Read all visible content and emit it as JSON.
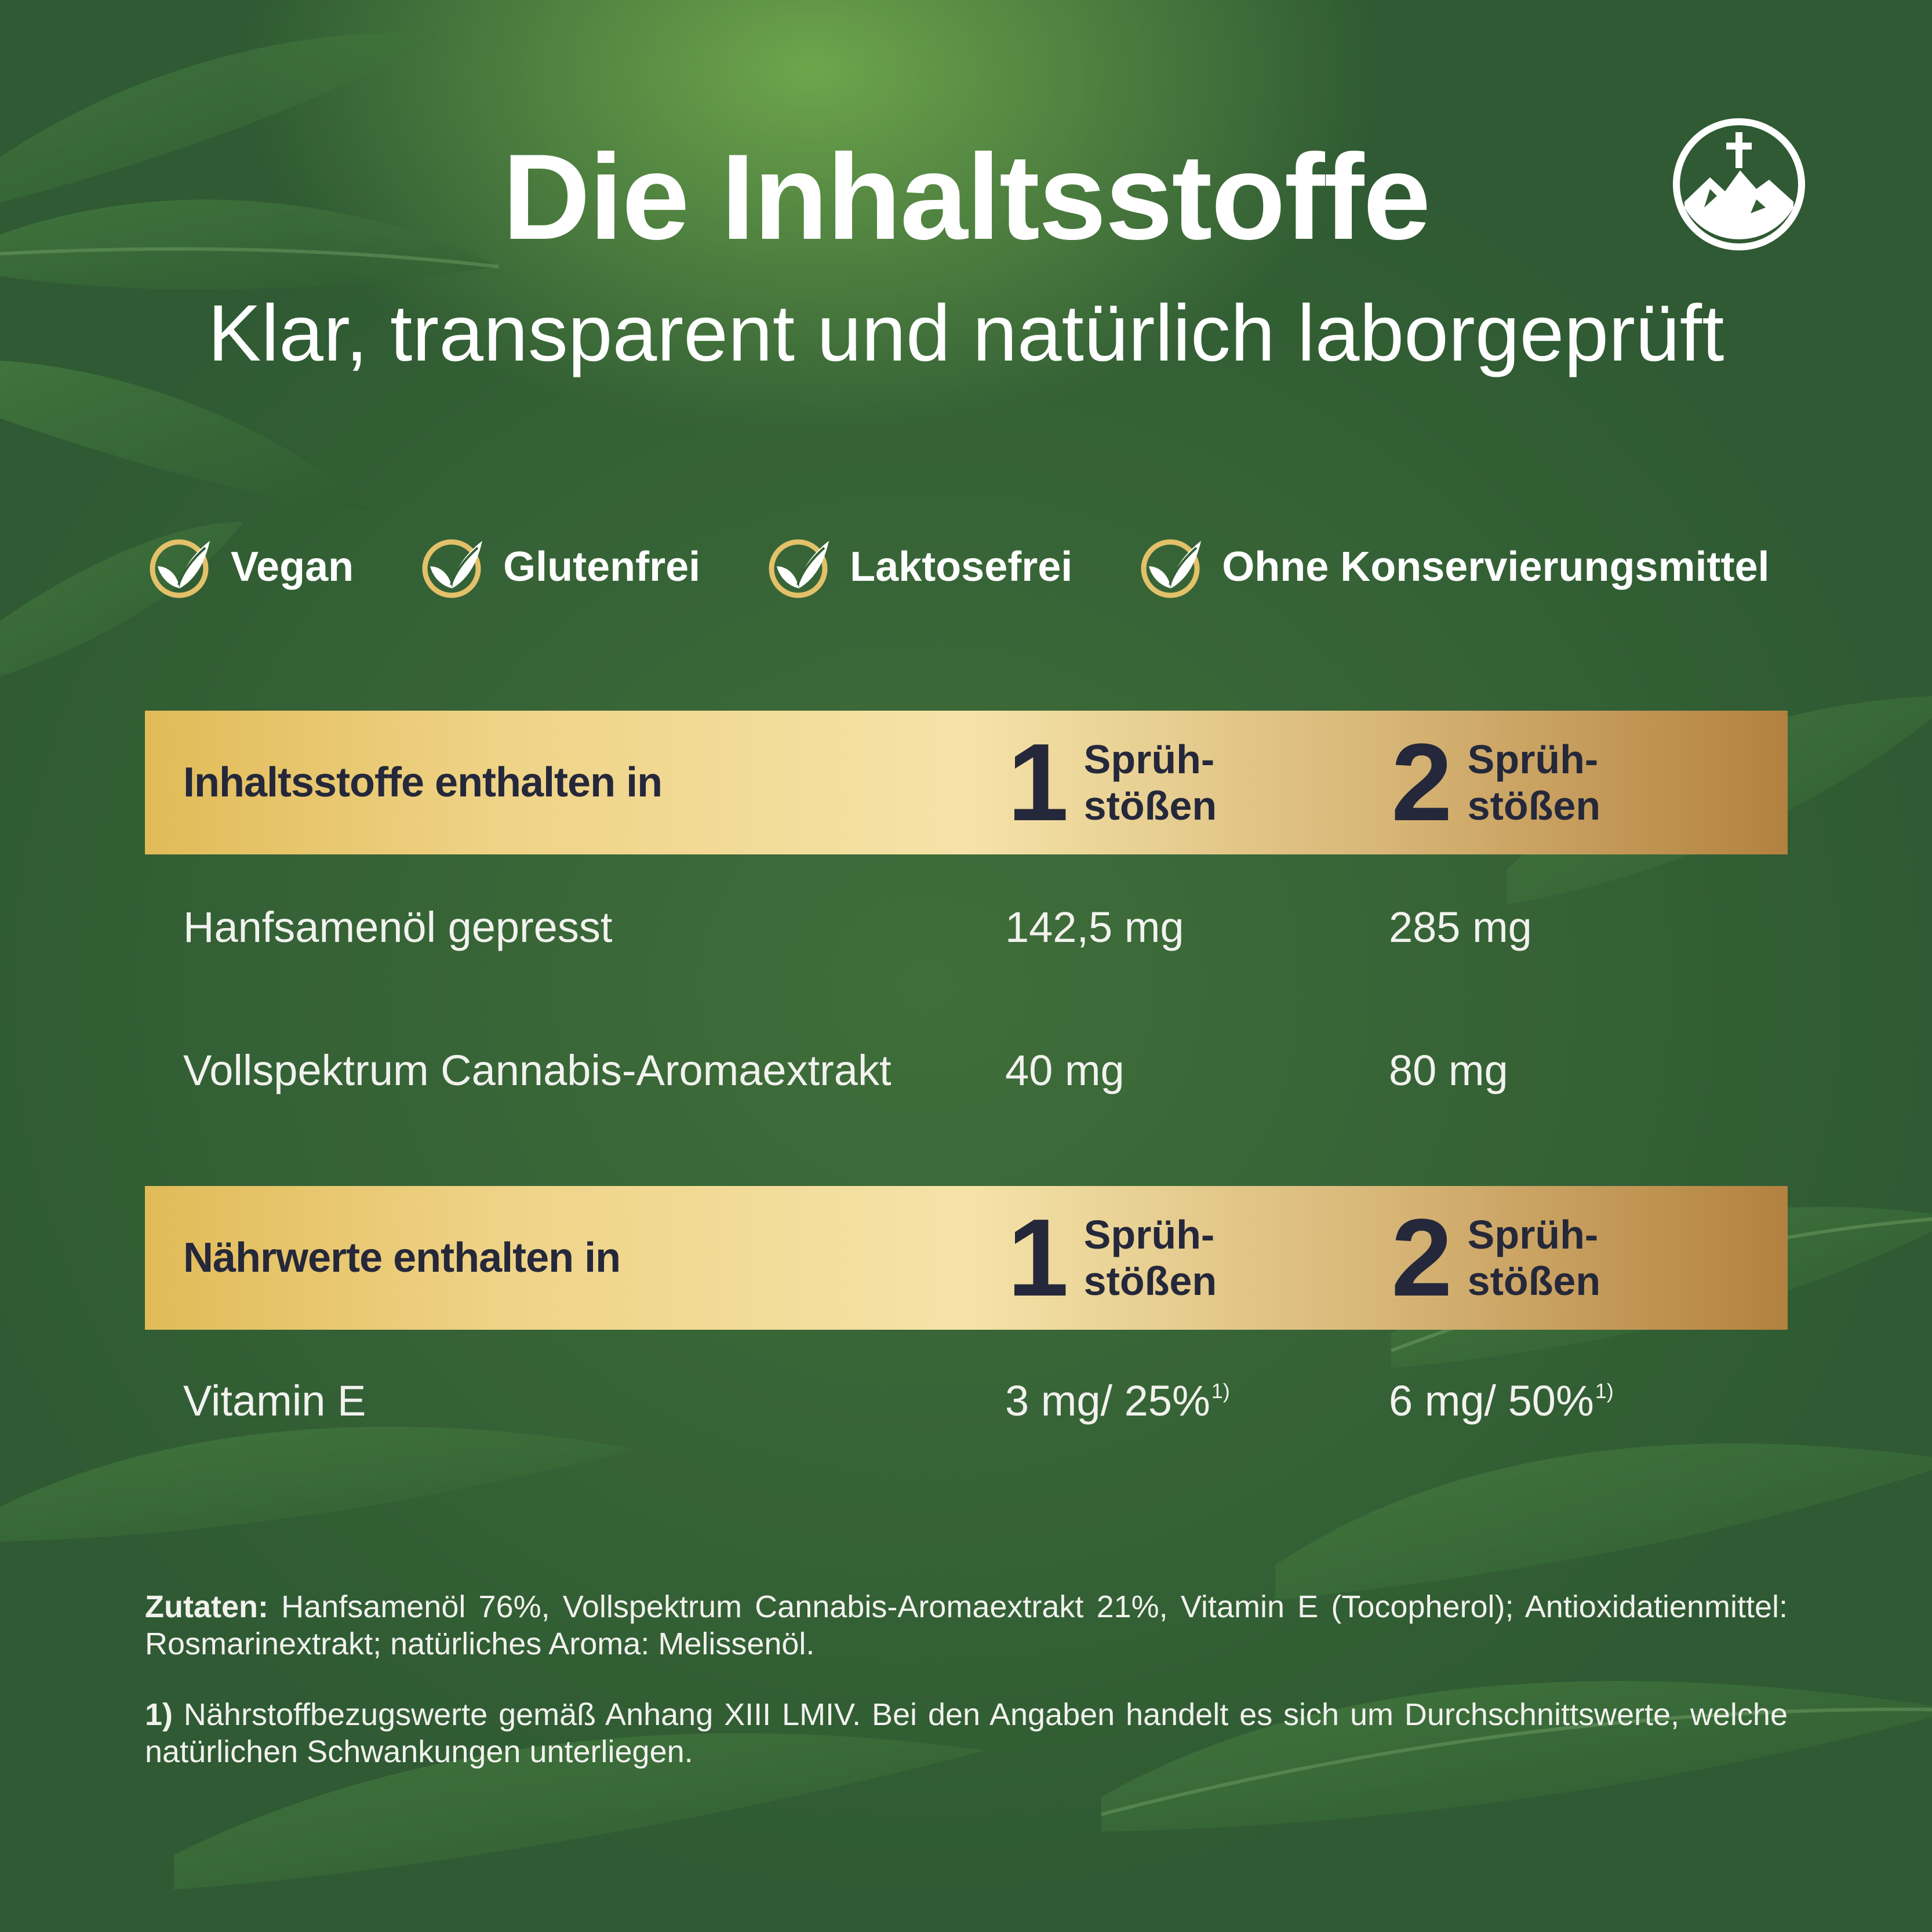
{
  "header": {
    "title": "Die Inhaltsstoffe",
    "subtitle": "Klar, transparent und natürlich laborgeprüft",
    "logo_icon": "mountain-cross-icon"
  },
  "features": [
    {
      "icon": "leaf-check-icon",
      "label": "Vegan"
    },
    {
      "icon": "leaf-check-icon",
      "label": "Glutenfrei"
    },
    {
      "icon": "leaf-check-icon",
      "label": "Laktosefrei"
    },
    {
      "icon": "leaf-check-icon",
      "label": "Ohne Konservierungsmittel"
    }
  ],
  "sections": [
    {
      "title": "Inhaltsstoffe enthalten in",
      "columns": [
        {
          "number": "1",
          "unit_line1": "Sprüh-",
          "unit_line2": "stößen"
        },
        {
          "number": "2",
          "unit_line1": "Sprüh-",
          "unit_line2": "stößen"
        }
      ],
      "rows": [
        {
          "name": "Hanfsamenöl gepresst",
          "value_1": "142,5 mg",
          "value_2": "285 mg"
        },
        {
          "name": "Vollspektrum Cannabis-Aromaextrakt",
          "value_1": "40 mg",
          "value_2": "80 mg"
        }
      ]
    },
    {
      "title": "Nährwerte enthalten in",
      "columns": [
        {
          "number": "1",
          "unit_line1": "Sprüh-",
          "unit_line2": "stößen"
        },
        {
          "number": "2",
          "unit_line1": "Sprüh-",
          "unit_line2": "stößen"
        }
      ],
      "rows": [
        {
          "name": "Vitamin E",
          "value_1": "3 mg/ 25%",
          "value_1_note": "1)",
          "value_2": "6 mg/ 50%",
          "value_2_note": "1)"
        }
      ]
    }
  ],
  "notes": {
    "ingredients_label": "Zutaten:",
    "ingredients_text": "Hanfsamenöl 76%, Vollspektrum Cannabis-Aromaextrakt 21%, Vitamin E (Tocopherol); Antioxidatienmittel: Rosmarinextrakt; natürliches Aroma: Melissenöl.",
    "footnote_label": "1)",
    "footnote_text": "Nährstoffbezugswerte gemäß Anhang XIII LMIV. Bei den Angaben handelt es sich um Durchschnittswerte, welche natürlichen Schwankungen unterliegen."
  },
  "colors": {
    "background": "#335e34",
    "band_gold": "#efd387",
    "band_bronze": "#b3813f",
    "band_text": "#25283a",
    "text": "#ffffff"
  }
}
